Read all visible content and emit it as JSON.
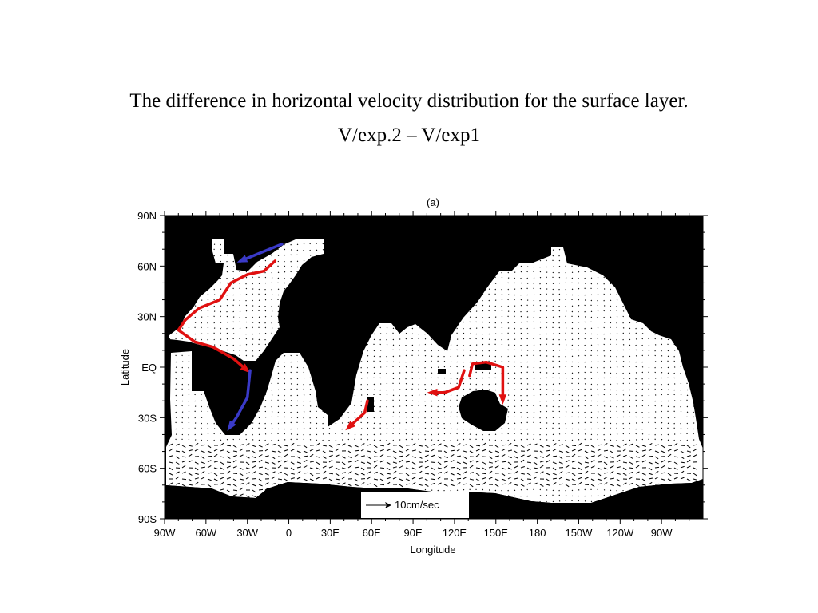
{
  "slide": {
    "title_line1": "The difference  in horizontal velocity distribution for the surface layer.",
    "title_line2": "V/exp.2 – V/exp1"
  },
  "chart_data": {
    "type": "vector-map",
    "panel_label": "(a)",
    "xlabel": "Longitude",
    "ylabel": "Latitude",
    "x_ticks": [
      "90W",
      "60W",
      "30W",
      "0",
      "30E",
      "60E",
      "90E",
      "120E",
      "150E",
      "180",
      "150W",
      "120W",
      "90W"
    ],
    "y_ticks": [
      "90N",
      "60N",
      "30N",
      "EQ",
      "30S",
      "60S",
      "90S"
    ],
    "x_range_deg_east": [
      -90,
      300
    ],
    "y_range_deg": [
      -90,
      90
    ],
    "reference_vector_label": "10cm/sec",
    "land_color": "#000000",
    "ocean_color": "#ffffff",
    "highlight_colors": {
      "increase": "#e01010",
      "decrease": "#3a3ac8"
    },
    "highlight_currents": [
      {
        "color": "red",
        "path_lon_lat": [
          [
            -10,
            63
          ],
          [
            -18,
            57
          ],
          [
            -30,
            55
          ],
          [
            -42,
            50
          ],
          [
            -50,
            40
          ],
          [
            -65,
            35
          ],
          [
            -75,
            28
          ],
          [
            -80,
            22
          ],
          [
            -68,
            15
          ],
          [
            -55,
            12
          ],
          [
            -40,
            5
          ],
          [
            -30,
            -2
          ]
        ]
      },
      {
        "color": "blue",
        "path_lon_lat": [
          [
            -5,
            73
          ],
          [
            -20,
            68
          ],
          [
            -35,
            63
          ]
        ]
      },
      {
        "color": "blue",
        "path_lon_lat": [
          [
            -28,
            -2
          ],
          [
            -30,
            -18
          ],
          [
            -38,
            -30
          ],
          [
            -43,
            -36
          ]
        ]
      },
      {
        "color": "red",
        "path_lon_lat": [
          [
            57,
            -20
          ],
          [
            55,
            -27
          ],
          [
            43,
            -36
          ]
        ]
      },
      {
        "color": "red",
        "path_lon_lat": [
          [
            127,
            -2
          ],
          [
            123,
            -12
          ],
          [
            113,
            -15
          ],
          [
            103,
            -15
          ]
        ]
      },
      {
        "color": "red",
        "path_lon_lat": [
          [
            131,
            -5
          ],
          [
            133,
            2
          ],
          [
            143,
            3
          ],
          [
            155,
            0
          ],
          [
            155,
            -20
          ]
        ]
      }
    ]
  }
}
